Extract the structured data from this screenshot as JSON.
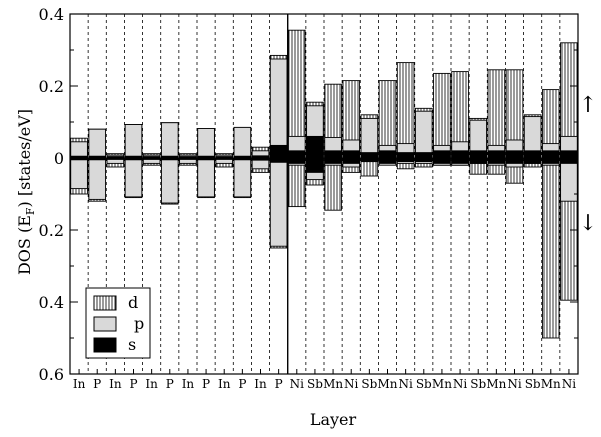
{
  "chart_data": {
    "type": "bar",
    "xlabel": "Layer",
    "ylabel": "DOS (E",
    "ylabel_sub": "F",
    "ylabel_unit": ") [states/eV]",
    "yticks": [
      {
        "value": 0.4,
        "label": "0.4"
      },
      {
        "value": 0.2,
        "label": "0.2"
      },
      {
        "value": 0.0,
        "label": "0"
      },
      {
        "value": -0.2,
        "label": "0.2"
      },
      {
        "value": -0.4,
        "label": "0.4"
      },
      {
        "value": -0.6,
        "label": "0.6"
      }
    ],
    "ylim": [
      -0.6,
      0.4
    ],
    "spin_up_symbol": "↑",
    "spin_down_symbol": "↓",
    "categories": [
      "In",
      "P",
      "In",
      "P",
      "In",
      "P",
      "In",
      "P",
      "In",
      "P",
      "In",
      "P",
      "Ni",
      "Sb",
      "Mn",
      "Ni",
      "Sb",
      "Mn",
      "Ni",
      "Sb",
      "Mn",
      "Ni",
      "Sb",
      "Mn",
      "Ni",
      "Sb",
      "Mn",
      "Ni"
    ],
    "interface_after_index": 11,
    "legend": {
      "placement": "bottom-left",
      "entries": [
        "d",
        "p",
        "s"
      ]
    },
    "fill_styles": {
      "d": "hatch-vertical",
      "p": "#d9d9d9",
      "s": "#000000"
    },
    "series": {
      "up": {
        "s": [
          0.005,
          0.005,
          0.004,
          0.005,
          0.004,
          0.005,
          0.004,
          0.005,
          0.004,
          0.005,
          0.006,
          0.035,
          0.02,
          0.06,
          0.02,
          0.02,
          0.015,
          0.02,
          0.015,
          0.015,
          0.02,
          0.02,
          0.02,
          0.02,
          0.02,
          0.02,
          0.02,
          0.02
        ],
        "p": [
          0.045,
          0.08,
          0.008,
          0.093,
          0.008,
          0.098,
          0.008,
          0.082,
          0.008,
          0.085,
          0.02,
          0.275,
          0.06,
          0.145,
          0.057,
          0.05,
          0.11,
          0.035,
          0.04,
          0.13,
          0.035,
          0.045,
          0.105,
          0.035,
          0.05,
          0.115,
          0.04,
          0.06
        ],
        "d": [
          0.055,
          0.08,
          0.012,
          0.093,
          0.012,
          0.098,
          0.012,
          0.082,
          0.012,
          0.085,
          0.03,
          0.285,
          0.355,
          0.155,
          0.205,
          0.215,
          0.12,
          0.215,
          0.265,
          0.138,
          0.235,
          0.24,
          0.11,
          0.245,
          0.245,
          0.12,
          0.19,
          0.32
        ]
      },
      "down": {
        "s": [
          0.005,
          0.005,
          0.004,
          0.005,
          0.004,
          0.005,
          0.004,
          0.005,
          0.004,
          0.005,
          0.006,
          0.012,
          0.015,
          0.04,
          0.015,
          0.015,
          0.01,
          0.015,
          0.01,
          0.01,
          0.015,
          0.015,
          0.015,
          0.015,
          0.015,
          0.015,
          0.015,
          0.015
        ],
        "p": [
          0.085,
          0.115,
          0.015,
          0.108,
          0.015,
          0.125,
          0.015,
          0.108,
          0.015,
          0.108,
          0.03,
          0.245,
          0.02,
          0.06,
          0.02,
          0.025,
          0.01,
          0.02,
          0.015,
          0.015,
          0.02,
          0.02,
          0.015,
          0.02,
          0.025,
          0.015,
          0.02,
          0.12
        ],
        "d": [
          0.1,
          0.12,
          0.025,
          0.11,
          0.02,
          0.128,
          0.02,
          0.11,
          0.025,
          0.11,
          0.04,
          0.25,
          0.135,
          0.075,
          0.145,
          0.04,
          0.05,
          0.015,
          0.03,
          0.025,
          0.02,
          0.02,
          0.045,
          0.045,
          0.07,
          0.025,
          0.5,
          0.395
        ]
      }
    }
  }
}
